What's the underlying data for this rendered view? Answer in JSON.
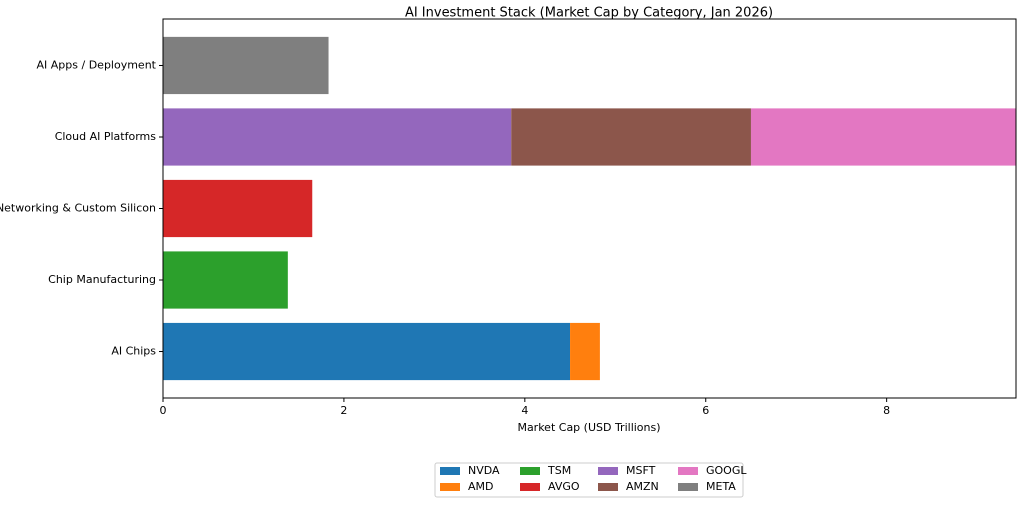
{
  "chart_data": {
    "type": "stacked-barh",
    "title": "AI Investment Stack (Market Cap by Category, Jan 2026)",
    "x_label": "Market Cap (USD Trillions)",
    "categories": [
      "AI Chips",
      "Chip Manufacturing",
      "Networking & Custom Silicon",
      "Cloud AI Platforms",
      "AI Apps / Deployment"
    ],
    "series": [
      {
        "name": "NVDA",
        "color": "#1f77b4",
        "values": [
          4.5,
          null,
          null,
          null,
          null
        ]
      },
      {
        "name": "AMD",
        "color": "#ff7f0e",
        "values": [
          0.33,
          null,
          null,
          null,
          null
        ]
      },
      {
        "name": "TSM",
        "color": "#2ca02c",
        "values": [
          null,
          1.38,
          null,
          null,
          null
        ]
      },
      {
        "name": "AVGO",
        "color": "#d62728",
        "values": [
          null,
          null,
          1.65,
          null,
          null
        ]
      },
      {
        "name": "MSFT",
        "color": "#9467bd",
        "values": [
          null,
          null,
          null,
          3.85,
          null
        ]
      },
      {
        "name": "AMZN",
        "color": "#8c564b",
        "values": [
          null,
          null,
          null,
          2.65,
          null
        ]
      },
      {
        "name": "GOOGL",
        "color": "#e377c2",
        "values": [
          null,
          null,
          null,
          2.93,
          null
        ]
      },
      {
        "name": "META",
        "color": "#7f7f7f",
        "values": [
          null,
          null,
          null,
          null,
          1.83
        ]
      }
    ],
    "xlim": [
      0,
      9.43
    ],
    "xticks": [
      0,
      2,
      4,
      6,
      8
    ],
    "legend_position": "bottom-center",
    "legend_columns": 4
  }
}
